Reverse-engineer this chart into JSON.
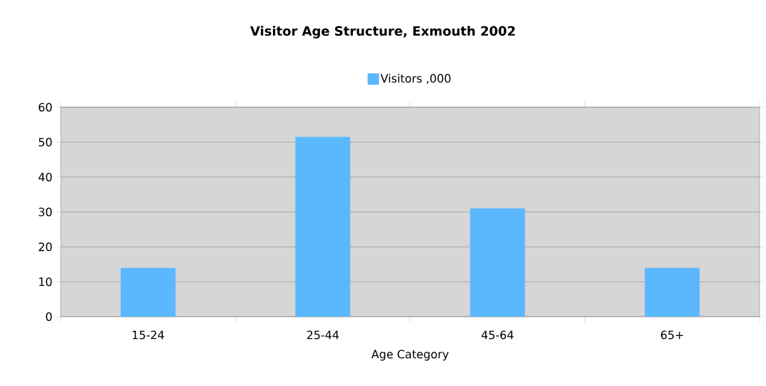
{
  "chart_data": {
    "type": "bar",
    "title": "Visitor Age Structure, Exmouth 2002",
    "xlabel": "Age Category",
    "categories": [
      "15-24",
      "25-44",
      "45-64",
      "65+"
    ],
    "series": [
      {
        "name": "Visitors ,000",
        "color": "#5bb8ff",
        "values": [
          14,
          51.5,
          31,
          14
        ]
      }
    ],
    "ylim": [
      0,
      60
    ],
    "yticks": [
      0,
      10,
      20,
      30,
      40,
      50,
      60
    ],
    "grid": "y",
    "legend": "top"
  }
}
